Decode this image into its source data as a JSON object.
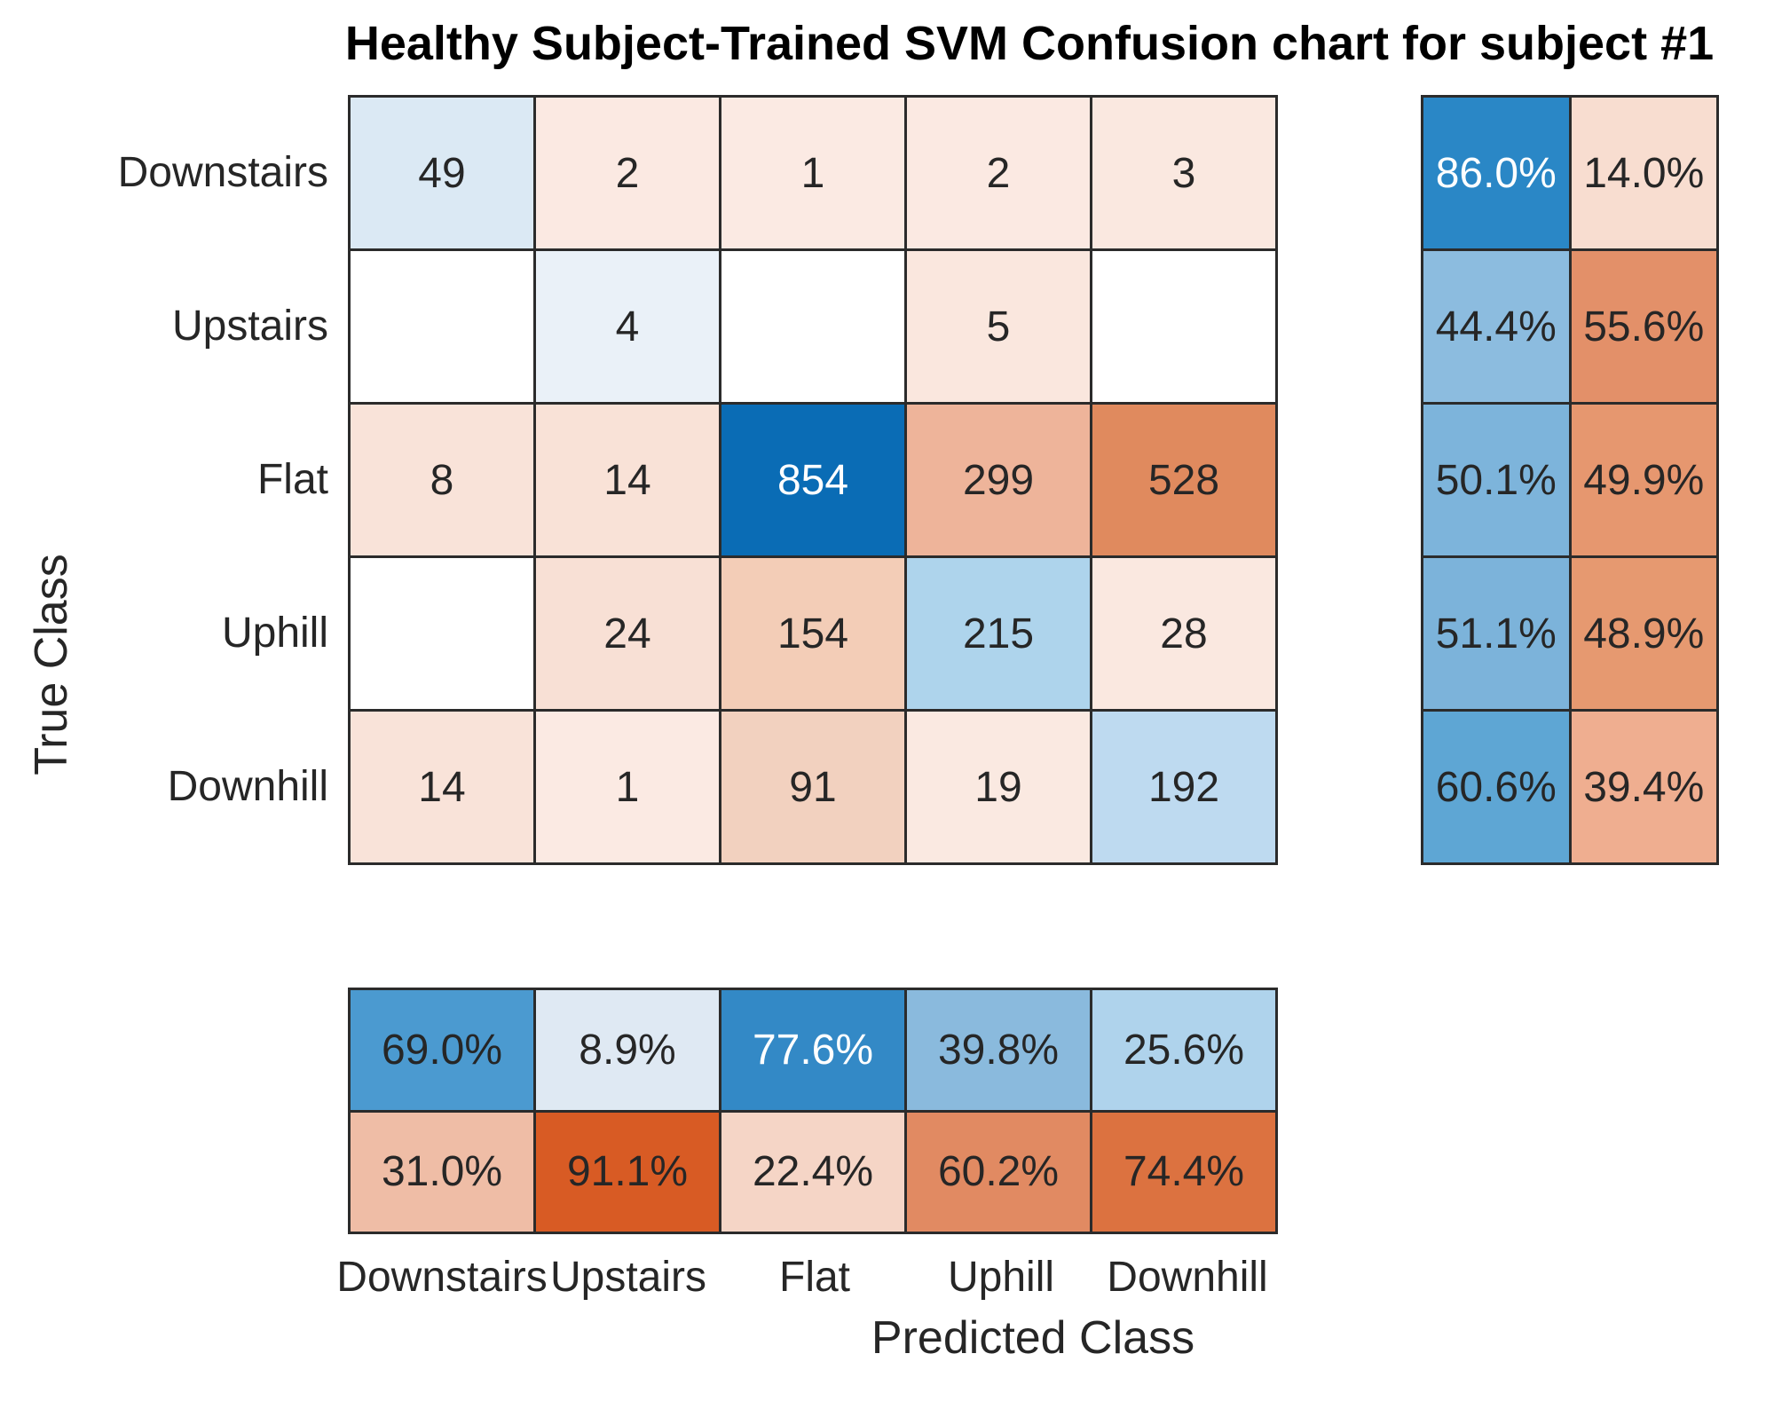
{
  "chart_data": {
    "type": "heatmap",
    "title": "Healthy Subject-Trained SVM Confusion chart for subject #1",
    "xlabel": "Predicted Class",
    "ylabel": "True Class",
    "classes": [
      "Downstairs",
      "Upstairs",
      "Flat",
      "Uphill",
      "Downhill"
    ],
    "matrix": [
      [
        49,
        2,
        1,
        2,
        3
      ],
      [
        null,
        4,
        null,
        5,
        null
      ],
      [
        8,
        14,
        854,
        299,
        528
      ],
      [
        null,
        24,
        154,
        215,
        28
      ],
      [
        14,
        1,
        91,
        19,
        192
      ]
    ],
    "row_summary": [
      [
        "86.0%",
        "14.0%"
      ],
      [
        "44.4%",
        "55.6%"
      ],
      [
        "50.1%",
        "49.9%"
      ],
      [
        "51.1%",
        "48.9%"
      ],
      [
        "60.6%",
        "39.4%"
      ]
    ],
    "col_summary": [
      [
        "69.0%",
        "8.9%",
        "77.6%",
        "39.8%",
        "25.6%"
      ],
      [
        "31.0%",
        "91.1%",
        "22.4%",
        "60.2%",
        "74.4%"
      ]
    ],
    "legend_position": "none",
    "grid": "on",
    "colors": {
      "grid_line": "#2b2b2b",
      "text_dark": "#262626",
      "text_light": "#ffffff",
      "matrix_bg": [
        [
          "#dbe9f4",
          "#fbe9e2",
          "#fbeae3",
          "#fbe9e2",
          "#fae8e0"
        ],
        [
          "#ffffff",
          "#eaf1f8",
          "#ffffff",
          "#fae7de",
          "#ffffff"
        ],
        [
          "#f9e3d9",
          "#f9e2d7",
          "#0a6cb5",
          "#eeb49a",
          "#e08a5e"
        ],
        [
          "#ffffff",
          "#f8e0d5",
          "#f3cdb7",
          "#aed4ec",
          "#fae8e0"
        ],
        [
          "#f9e3d9",
          "#fbeae3",
          "#f2d1bf",
          "#fae9e1",
          "#bedaf0"
        ]
      ],
      "row_summary_bg": [
        [
          "#2a87c6",
          "#f8ddd0"
        ],
        [
          "#8cbcdf",
          "#e39069"
        ],
        [
          "#7db4db",
          "#e6976f"
        ],
        [
          "#7cb3da",
          "#e69970"
        ],
        [
          "#5ea6d4",
          "#efae90"
        ]
      ],
      "col_summary_bg": [
        [
          "#4b9ad0",
          "#dfe9f3",
          "#3389c6",
          "#8abadd",
          "#afd3ec"
        ],
        [
          "#efbda6",
          "#d85b24",
          "#f5d5c6",
          "#e18a62",
          "#dc7240"
        ]
      ],
      "matrix_white_text": [
        [
          2,
          2
        ]
      ],
      "row_summary_white_text": [
        [
          0,
          0
        ]
      ],
      "col_summary_white_text": [
        [
          0,
          2
        ]
      ]
    }
  }
}
